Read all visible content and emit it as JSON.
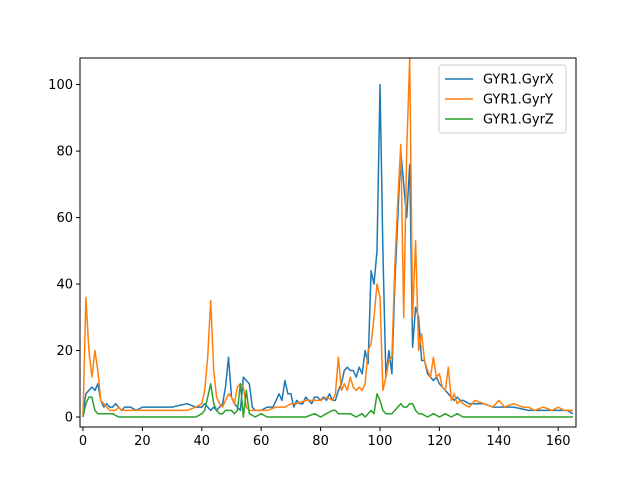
{
  "chart_data": {
    "type": "line",
    "title": "",
    "xlabel": "",
    "ylabel": "",
    "xlim": [
      -1,
      166
    ],
    "ylim": [
      -3,
      108
    ],
    "xticks": [
      0,
      20,
      40,
      60,
      80,
      100,
      120,
      140,
      160
    ],
    "yticks": [
      0,
      20,
      40,
      60,
      80,
      100
    ],
    "grid": false,
    "legend_position": "top-right",
    "series": [
      {
        "name": "GYR1.GyrX",
        "color": "#1f77b4",
        "points": [
          [
            0,
            1
          ],
          [
            1,
            7
          ],
          [
            2,
            8
          ],
          [
            3,
            9
          ],
          [
            4,
            8
          ],
          [
            5,
            10
          ],
          [
            6,
            5
          ],
          [
            7,
            3
          ],
          [
            8,
            4
          ],
          [
            9,
            3
          ],
          [
            10,
            3
          ],
          [
            11,
            4
          ],
          [
            12,
            3
          ],
          [
            13,
            2
          ],
          [
            14,
            3
          ],
          [
            15,
            3
          ],
          [
            16,
            3
          ],
          [
            18,
            2
          ],
          [
            20,
            3
          ],
          [
            25,
            3
          ],
          [
            30,
            3
          ],
          [
            35,
            4
          ],
          [
            38,
            3
          ],
          [
            40,
            3
          ],
          [
            41,
            4
          ],
          [
            42,
            3
          ],
          [
            43,
            2
          ],
          [
            44,
            3
          ],
          [
            45,
            2
          ],
          [
            46,
            3
          ],
          [
            47,
            4
          ],
          [
            48,
            9
          ],
          [
            49,
            18
          ],
          [
            50,
            6
          ],
          [
            51,
            4
          ],
          [
            52,
            3
          ],
          [
            53,
            2
          ],
          [
            54,
            12
          ],
          [
            55,
            11
          ],
          [
            56,
            10
          ],
          [
            57,
            3
          ],
          [
            58,
            2
          ],
          [
            60,
            2
          ],
          [
            62,
            3
          ],
          [
            64,
            3
          ],
          [
            66,
            7
          ],
          [
            67,
            5
          ],
          [
            68,
            11
          ],
          [
            69,
            7
          ],
          [
            70,
            7
          ],
          [
            71,
            3
          ],
          [
            72,
            5
          ],
          [
            73,
            4
          ],
          [
            74,
            4
          ],
          [
            75,
            6
          ],
          [
            76,
            5
          ],
          [
            77,
            4
          ],
          [
            78,
            6
          ],
          [
            79,
            6
          ],
          [
            80,
            5
          ],
          [
            81,
            6
          ],
          [
            82,
            5
          ],
          [
            83,
            7
          ],
          [
            84,
            5
          ],
          [
            85,
            5
          ],
          [
            86,
            8
          ],
          [
            87,
            10
          ],
          [
            88,
            14
          ],
          [
            89,
            15
          ],
          [
            90,
            14
          ],
          [
            91,
            14
          ],
          [
            92,
            12
          ],
          [
            93,
            15
          ],
          [
            94,
            13
          ],
          [
            95,
            20
          ],
          [
            96,
            16
          ],
          [
            97,
            44
          ],
          [
            98,
            40
          ],
          [
            99,
            50
          ],
          [
            100,
            100
          ],
          [
            101,
            50
          ],
          [
            102,
            12
          ],
          [
            103,
            20
          ],
          [
            104,
            13
          ],
          [
            105,
            40
          ],
          [
            106,
            60
          ],
          [
            107,
            80
          ],
          [
            108,
            70
          ],
          [
            109,
            60
          ],
          [
            110,
            76
          ],
          [
            111,
            21
          ],
          [
            112,
            33
          ],
          [
            113,
            30
          ],
          [
            114,
            17
          ],
          [
            115,
            17
          ],
          [
            116,
            13
          ],
          [
            117,
            12
          ],
          [
            118,
            11
          ],
          [
            119,
            12
          ],
          [
            120,
            10
          ],
          [
            121,
            9
          ],
          [
            122,
            8
          ],
          [
            123,
            7
          ],
          [
            124,
            6
          ],
          [
            125,
            5
          ],
          [
            126,
            6
          ],
          [
            127,
            5
          ],
          [
            128,
            5
          ],
          [
            130,
            4
          ],
          [
            132,
            4
          ],
          [
            135,
            4
          ],
          [
            138,
            3
          ],
          [
            140,
            3
          ],
          [
            145,
            3
          ],
          [
            150,
            2
          ],
          [
            155,
            2
          ],
          [
            160,
            2
          ],
          [
            163,
            2
          ],
          [
            165,
            1
          ]
        ]
      },
      {
        "name": "GYR1.GyrY",
        "color": "#ff7f0e",
        "points": [
          [
            0,
            0
          ],
          [
            1,
            36
          ],
          [
            2,
            20
          ],
          [
            3,
            12
          ],
          [
            4,
            20
          ],
          [
            5,
            14
          ],
          [
            6,
            5
          ],
          [
            7,
            4
          ],
          [
            8,
            3
          ],
          [
            9,
            2
          ],
          [
            10,
            2
          ],
          [
            11,
            2
          ],
          [
            12,
            3
          ],
          [
            13,
            2
          ],
          [
            15,
            2
          ],
          [
            20,
            2
          ],
          [
            25,
            2
          ],
          [
            30,
            2
          ],
          [
            35,
            2
          ],
          [
            38,
            3
          ],
          [
            40,
            4
          ],
          [
            41,
            8
          ],
          [
            42,
            18
          ],
          [
            43,
            35
          ],
          [
            44,
            14
          ],
          [
            45,
            6
          ],
          [
            46,
            4
          ],
          [
            47,
            3
          ],
          [
            48,
            5
          ],
          [
            49,
            7
          ],
          [
            50,
            6
          ],
          [
            51,
            4
          ],
          [
            52,
            9
          ],
          [
            53,
            10
          ],
          [
            54,
            9
          ],
          [
            55,
            3
          ],
          [
            56,
            2
          ],
          [
            58,
            2
          ],
          [
            60,
            2
          ],
          [
            62,
            2
          ],
          [
            65,
            3
          ],
          [
            68,
            3
          ],
          [
            70,
            4
          ],
          [
            72,
            4
          ],
          [
            75,
            5
          ],
          [
            78,
            5
          ],
          [
            80,
            5
          ],
          [
            82,
            6
          ],
          [
            84,
            5
          ],
          [
            85,
            7
          ],
          [
            86,
            18
          ],
          [
            87,
            8
          ],
          [
            88,
            10
          ],
          [
            89,
            8
          ],
          [
            90,
            12
          ],
          [
            91,
            9
          ],
          [
            92,
            8
          ],
          [
            93,
            9
          ],
          [
            94,
            8
          ],
          [
            95,
            10
          ],
          [
            96,
            20
          ],
          [
            97,
            22
          ],
          [
            98,
            30
          ],
          [
            99,
            40
          ],
          [
            100,
            36
          ],
          [
            101,
            8
          ],
          [
            102,
            12
          ],
          [
            103,
            17
          ],
          [
            104,
            18
          ],
          [
            105,
            45
          ],
          [
            106,
            65
          ],
          [
            107,
            82
          ],
          [
            108,
            30
          ],
          [
            109,
            80
          ],
          [
            110,
            108
          ],
          [
            111,
            30
          ],
          [
            112,
            53
          ],
          [
            113,
            20
          ],
          [
            114,
            25
          ],
          [
            115,
            17
          ],
          [
            116,
            14
          ],
          [
            117,
            12
          ],
          [
            118,
            18
          ],
          [
            119,
            12
          ],
          [
            120,
            13
          ],
          [
            121,
            9
          ],
          [
            122,
            8
          ],
          [
            123,
            15
          ],
          [
            124,
            5
          ],
          [
            125,
            7
          ],
          [
            126,
            4
          ],
          [
            127,
            5
          ],
          [
            128,
            4
          ],
          [
            130,
            3
          ],
          [
            132,
            5
          ],
          [
            135,
            4
          ],
          [
            138,
            3
          ],
          [
            140,
            5
          ],
          [
            142,
            3
          ],
          [
            145,
            4
          ],
          [
            148,
            3
          ],
          [
            150,
            3
          ],
          [
            152,
            2
          ],
          [
            155,
            3
          ],
          [
            158,
            2
          ],
          [
            160,
            3
          ],
          [
            162,
            2
          ],
          [
            165,
            2
          ]
        ]
      },
      {
        "name": "GYR1.GyrZ",
        "color": "#2ca02c",
        "points": [
          [
            0,
            0
          ],
          [
            1,
            4
          ],
          [
            2,
            6
          ],
          [
            3,
            6
          ],
          [
            4,
            2
          ],
          [
            5,
            1
          ],
          [
            6,
            1
          ],
          [
            8,
            1
          ],
          [
            10,
            1
          ],
          [
            12,
            0
          ],
          [
            15,
            0
          ],
          [
            20,
            0
          ],
          [
            25,
            0
          ],
          [
            30,
            0
          ],
          [
            35,
            0
          ],
          [
            38,
            0
          ],
          [
            40,
            1
          ],
          [
            41,
            2
          ],
          [
            42,
            6
          ],
          [
            43,
            10
          ],
          [
            44,
            4
          ],
          [
            45,
            2
          ],
          [
            46,
            1
          ],
          [
            47,
            1
          ],
          [
            48,
            2
          ],
          [
            49,
            2
          ],
          [
            50,
            2
          ],
          [
            51,
            1
          ],
          [
            52,
            2
          ],
          [
            53,
            10
          ],
          [
            54,
            0
          ],
          [
            55,
            8
          ],
          [
            56,
            1
          ],
          [
            58,
            0
          ],
          [
            60,
            1
          ],
          [
            62,
            0
          ],
          [
            65,
            0
          ],
          [
            70,
            0
          ],
          [
            75,
            0
          ],
          [
            78,
            1
          ],
          [
            80,
            0
          ],
          [
            82,
            1
          ],
          [
            84,
            2
          ],
          [
            85,
            2
          ],
          [
            86,
            1
          ],
          [
            88,
            1
          ],
          [
            90,
            1
          ],
          [
            92,
            0
          ],
          [
            94,
            1
          ],
          [
            95,
            0
          ],
          [
            96,
            1
          ],
          [
            97,
            2
          ],
          [
            98,
            1
          ],
          [
            99,
            7
          ],
          [
            100,
            5
          ],
          [
            101,
            2
          ],
          [
            102,
            1
          ],
          [
            103,
            1
          ],
          [
            104,
            1
          ],
          [
            105,
            2
          ],
          [
            106,
            3
          ],
          [
            107,
            4
          ],
          [
            108,
            3
          ],
          [
            109,
            3
          ],
          [
            110,
            4
          ],
          [
            111,
            4
          ],
          [
            112,
            2
          ],
          [
            113,
            1
          ],
          [
            114,
            1
          ],
          [
            116,
            0
          ],
          [
            118,
            1
          ],
          [
            120,
            0
          ],
          [
            122,
            1
          ],
          [
            124,
            0
          ],
          [
            126,
            1
          ],
          [
            128,
            0
          ],
          [
            130,
            0
          ],
          [
            135,
            0
          ],
          [
            140,
            0
          ],
          [
            145,
            0
          ],
          [
            150,
            0
          ],
          [
            155,
            0
          ],
          [
            160,
            0
          ],
          [
            165,
            0
          ]
        ]
      }
    ]
  }
}
